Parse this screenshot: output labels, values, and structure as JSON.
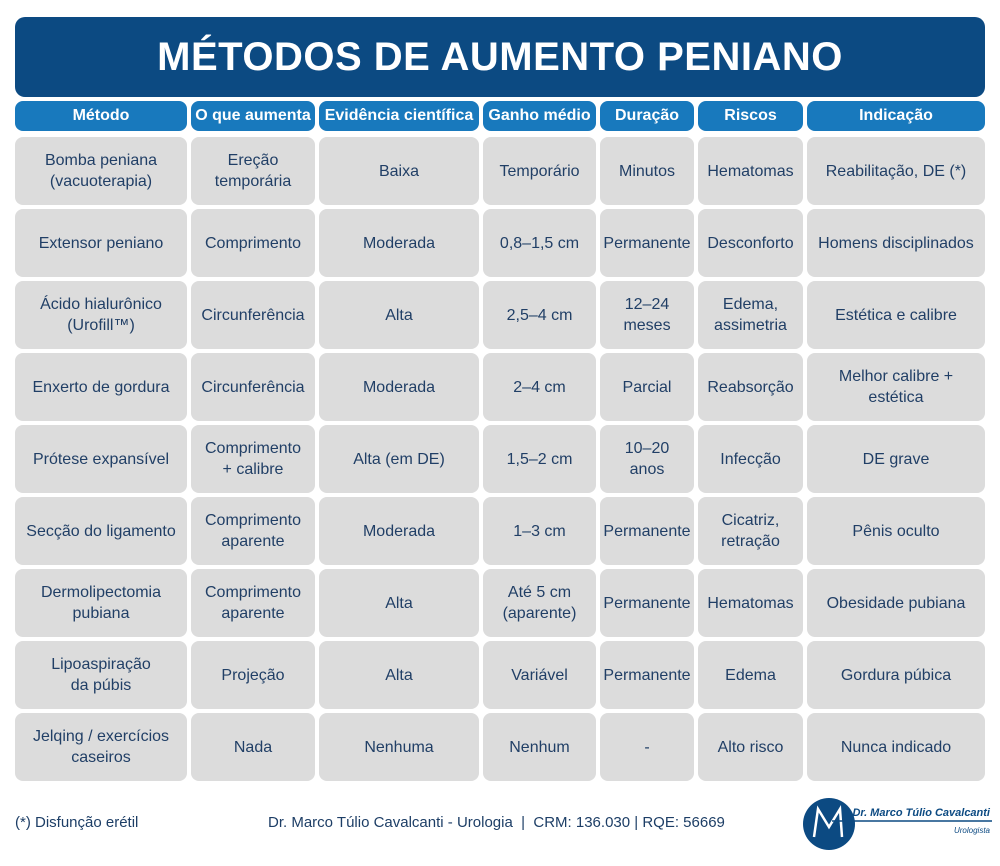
{
  "title": "MÉTODOS DE AUMENTO PENIANO",
  "headers": [
    "Método",
    "O que aumenta",
    "Evidência científica",
    "Ganho médio",
    "Duração",
    "Riscos",
    "Indicação"
  ],
  "rows": [
    [
      "Bomba peniana\n(vacuoterapia)",
      "Ereção\ntemporária",
      "Baixa",
      "Temporário",
      "Minutos",
      "Hematomas",
      "Reabilitação, DE (*)"
    ],
    [
      "Extensor peniano",
      "Comprimento",
      "Moderada",
      "0,8–1,5 cm",
      "Permanente",
      "Desconforto",
      "Homens disciplinados"
    ],
    [
      "Ácido hialurônico\n(Urofill™)",
      "Circunferência",
      "Alta",
      "2,5–4 cm",
      "12–24\nmeses",
      "Edema,\nassimetria",
      "Estética e calibre"
    ],
    [
      "Enxerto de gordura",
      "Circunferência",
      "Moderada",
      "2–4 cm",
      "Parcial",
      "Reabsorção",
      "Melhor calibre +\nestética"
    ],
    [
      "Prótese expansível",
      "Comprimento\n+ calibre",
      "Alta (em DE)",
      "1,5–2 cm",
      "10–20\nanos",
      "Infecção",
      "DE grave"
    ],
    [
      "Secção do ligamento",
      "Comprimento\naparente",
      "Moderada",
      "1–3 cm",
      "Permanente",
      "Cicatriz,\nretração",
      "Pênis oculto"
    ],
    [
      "Dermolipectomia\npubiana",
      "Comprimento\naparente",
      "Alta",
      "Até 5 cm\n(aparente)",
      "Permanente",
      "Hematomas",
      "Obesidade pubiana"
    ],
    [
      "Lipoaspiração\nda púbis",
      "Projeção",
      "Alta",
      "Variável",
      "Permanente",
      "Edema",
      "Gordura púbica"
    ],
    [
      "Jelqing / exercícios\ncaseiros",
      "Nada",
      "Nenhuma",
      "Nenhum",
      "-",
      "Alto risco",
      "Nunca indicado"
    ]
  ],
  "footer": {
    "footnote": "(*) Disfunção erétil",
    "credit": "Dr. Marco Túlio Cavalcanti - Urologia  |  CRM: 136.030 | RQE: 56669",
    "logo_name": "Dr. Marco Túlio Cavalcanti",
    "logo_sub": "Urologista"
  },
  "colors": {
    "title_bg": "#0c4a82",
    "header_bg": "#1879bd",
    "cell_bg": "#dcdcdc",
    "text": "#213f66"
  }
}
